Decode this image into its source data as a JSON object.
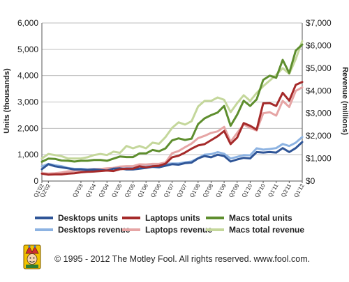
{
  "chart_data": {
    "type": "line",
    "x": [
      "Q1'02",
      "Q2'02",
      "Q3'02",
      "Q4'02",
      "Q1'03",
      "Q2'03",
      "Q3'03",
      "Q4'03",
      "Q1'04",
      "Q2'04",
      "Q3'04",
      "Q4'04",
      "Q1'05",
      "Q2'05",
      "Q3'05",
      "Q4'05",
      "Q1'06",
      "Q2'06",
      "Q3'06",
      "Q4'06",
      "Q1'07",
      "Q2'07",
      "Q3'07",
      "Q4'07",
      "Q1'08",
      "Q2'08",
      "Q3'08",
      "Q4'08",
      "Q1'09",
      "Q2'09",
      "Q3'09",
      "Q4'09",
      "Q1'10",
      "Q2'10",
      "Q3'10",
      "Q4'10",
      "Q1'11",
      "Q2'11",
      "Q3'11",
      "Q4'11",
      "Q1'12"
    ],
    "xticks": [
      "Q1'02",
      "Q2'02",
      "Q3'03",
      "Q1'04",
      "Q3'04",
      "Q1'05",
      "Q3'05",
      "Q1'06",
      "Q3'06",
      "Q1'07",
      "Q3'07",
      "Q1'08",
      "Q3'08",
      "Q1'09",
      "Q3'09",
      "Q1'10",
      "Q3'10",
      "Q1'11",
      "Q3'11",
      "Q1'12"
    ],
    "ylabel": "Units (thousands)",
    "y2label": "Revenue (millions)",
    "ylim": [
      0,
      6000
    ],
    "y2lim": [
      0,
      7000
    ],
    "yticks": [
      "0",
      "1,000",
      "2,000",
      "3,000",
      "4,000",
      "5,000",
      "6,000"
    ],
    "y2ticks": [
      "$0",
      "$1,000",
      "$2,000",
      "$3,000",
      "$4,000",
      "$5,000",
      "$6,000",
      "$7,000"
    ],
    "grid": true,
    "legend_position": "bottom",
    "series": [
      {
        "name": "Desktops units",
        "axis": "left",
        "color": "#2f5597",
        "values": [
          450,
          640,
          560,
          520,
          480,
          440,
          440,
          420,
          440,
          420,
          400,
          470,
          480,
          440,
          440,
          470,
          500,
          540,
          520,
          580,
          640,
          620,
          680,
          700,
          860,
          950,
          900,
          1000,
          950,
          740,
          820,
          880,
          860,
          1100,
          1080,
          1100,
          1080,
          1250,
          1100,
          1250,
          1480
        ]
      },
      {
        "name": "Laptops units",
        "axis": "left",
        "color": "#a52a2a",
        "values": [
          280,
          240,
          250,
          250,
          280,
          300,
          330,
          350,
          360,
          380,
          400,
          380,
          450,
          470,
          470,
          560,
          520,
          560,
          580,
          660,
          900,
          960,
          1080,
          1230,
          1350,
          1400,
          1550,
          1700,
          1900,
          1400,
          1650,
          2200,
          2100,
          1950,
          2950,
          2960,
          2850,
          3350,
          3050,
          3650,
          3760
        ]
      },
      {
        "name": "Macs total units",
        "axis": "left",
        "color": "#5e8e2e",
        "values": [
          730,
          850,
          840,
          780,
          770,
          740,
          770,
          770,
          800,
          800,
          770,
          850,
          930,
          910,
          910,
          1050,
          1050,
          1180,
          1130,
          1240,
          1540,
          1620,
          1560,
          1610,
          2160,
          2380,
          2500,
          2600,
          2850,
          2100,
          2520,
          3050,
          2850,
          3100,
          3840,
          4000,
          3920,
          4600,
          4100,
          4950,
          5180
        ]
      },
      {
        "name": "Desktops revenue",
        "axis": "right",
        "color": "#8db3e2",
        "values": [
          650,
          760,
          700,
          660,
          580,
          540,
          540,
          520,
          530,
          540,
          540,
          580,
          570,
          600,
          600,
          640,
          640,
          700,
          700,
          760,
          780,
          780,
          830,
          870,
          1010,
          1170,
          1190,
          1280,
          1210,
          1000,
          1070,
          1150,
          1140,
          1450,
          1390,
          1420,
          1460,
          1640,
          1550,
          1700,
          1950
        ]
      },
      {
        "name": "Laptops revenue",
        "axis": "right",
        "color": "#e6a5a5",
        "values": [
          350,
          330,
          350,
          380,
          430,
          450,
          470,
          500,
          520,
          530,
          560,
          580,
          640,
          660,
          660,
          740,
          730,
          760,
          760,
          820,
          1230,
          1330,
          1500,
          1660,
          1900,
          2000,
          2130,
          2200,
          2400,
          1740,
          2130,
          2510,
          2350,
          2240,
          3000,
          3050,
          2900,
          3550,
          3280,
          3990,
          4150
        ]
      },
      {
        "name": "Macs total revenue",
        "axis": "right",
        "color": "#c4d79b",
        "values": [
          1000,
          1200,
          1150,
          1100,
          1000,
          1000,
          1000,
          1050,
          1150,
          1200,
          1150,
          1300,
          1250,
          1550,
          1450,
          1550,
          1450,
          1700,
          1650,
          1950,
          2350,
          2600,
          2500,
          2650,
          3300,
          3550,
          3550,
          3700,
          3600,
          3050,
          3450,
          3800,
          3550,
          3900,
          4200,
          4450,
          4700,
          5000,
          4750,
          5400,
          6200
        ]
      }
    ]
  },
  "footer": {
    "logo_name": "motley-fool-jester-logo",
    "copyright": "© 1995 - 2012 The Motley Fool. All rights reserved. www.fool.com."
  }
}
